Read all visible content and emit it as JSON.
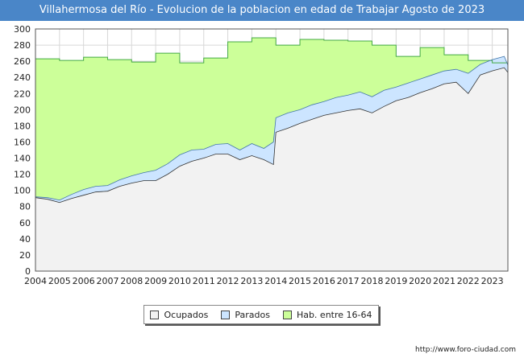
{
  "chart_data": {
    "type": "area",
    "title": "Villahermosa del Río - Evolucion de la poblacion en edad de Trabajar Agosto de 2023",
    "xlabel": "",
    "ylabel": "",
    "xlim": [
      2004,
      2023.65
    ],
    "ylim": [
      0,
      300
    ],
    "x_ticks": [
      "2004",
      "2005",
      "2006",
      "2007",
      "2008",
      "2009",
      "2010",
      "2011",
      "2012",
      "2013",
      "2014",
      "2015",
      "2016",
      "2017",
      "2018",
      "2019",
      "2020",
      "2021",
      "2022",
      "2023"
    ],
    "y_ticks": [
      0,
      20,
      40,
      60,
      80,
      100,
      120,
      140,
      160,
      180,
      200,
      220,
      240,
      260,
      280,
      300
    ],
    "grid": true,
    "series": [
      {
        "name": "Hab. entre 16-64",
        "color": "#ccff99",
        "line": "#44aa44",
        "x": [
          2004,
          2005,
          2006,
          2007,
          2008,
          2009,
          2010,
          2011,
          2012,
          2013,
          2014,
          2015,
          2016,
          2017,
          2018,
          2019,
          2020,
          2021,
          2022,
          2023
        ],
        "values": [
          263,
          261,
          265,
          262,
          259,
          270,
          258,
          264,
          284,
          289,
          280,
          287,
          286,
          285,
          280,
          266,
          277,
          268,
          261,
          258
        ]
      },
      {
        "name": "Parados",
        "color": "#cce5ff",
        "line": "#4477aa",
        "x": [
          2004,
          2004.5,
          2005,
          2005.5,
          2006,
          2006.5,
          2007,
          2007.5,
          2008,
          2008.5,
          2009,
          2009.5,
          2010,
          2010.5,
          2011,
          2011.5,
          2012,
          2012.5,
          2013,
          2013.5,
          2013.9,
          2014,
          2014.5,
          2015,
          2015.5,
          2016,
          2016.5,
          2017,
          2017.5,
          2018,
          2018.5,
          2019,
          2019.5,
          2020,
          2020.5,
          2021,
          2021.5,
          2022,
          2022.5,
          2023,
          2023.5,
          2023.65
        ],
        "values": [
          92,
          91,
          88,
          95,
          101,
          105,
          106,
          113,
          118,
          122,
          125,
          133,
          144,
          150,
          151,
          157,
          158,
          150,
          158,
          152,
          160,
          190,
          196,
          200,
          206,
          210,
          215,
          218,
          222,
          216,
          224,
          228,
          233,
          238,
          243,
          248,
          250,
          245,
          256,
          262,
          266,
          255
        ]
      },
      {
        "name": "Ocupados",
        "color": "#f2f2f2",
        "line": "#333333",
        "x": [
          2004,
          2004.5,
          2005,
          2005.5,
          2006,
          2006.5,
          2007,
          2007.5,
          2008,
          2008.5,
          2009,
          2009.5,
          2010,
          2010.5,
          2011,
          2011.5,
          2012,
          2012.5,
          2013,
          2013.5,
          2013.9,
          2014,
          2014.5,
          2015,
          2015.5,
          2016,
          2016.5,
          2017,
          2017.5,
          2018,
          2018.5,
          2019,
          2019.5,
          2020,
          2020.5,
          2021,
          2021.5,
          2022,
          2022.5,
          2023,
          2023.5,
          2023.65
        ],
        "values": [
          91,
          89,
          85,
          90,
          94,
          98,
          99,
          105,
          109,
          112,
          112,
          120,
          130,
          136,
          140,
          145,
          145,
          138,
          143,
          138,
          132,
          172,
          177,
          183,
          188,
          193,
          196,
          199,
          201,
          196,
          204,
          211,
          215,
          221,
          226,
          232,
          234,
          220,
          243,
          248,
          252,
          246
        ]
      }
    ]
  },
  "legend": {
    "items": [
      {
        "label": "Ocupados",
        "color": "#f2f2f2"
      },
      {
        "label": "Parados",
        "color": "#cce5ff"
      },
      {
        "label": "Hab. entre 16-64",
        "color": "#ccff99"
      }
    ]
  },
  "watermark": "FORO-CIUDAD.COM",
  "source_url": "http://www.foro-ciudad.com"
}
